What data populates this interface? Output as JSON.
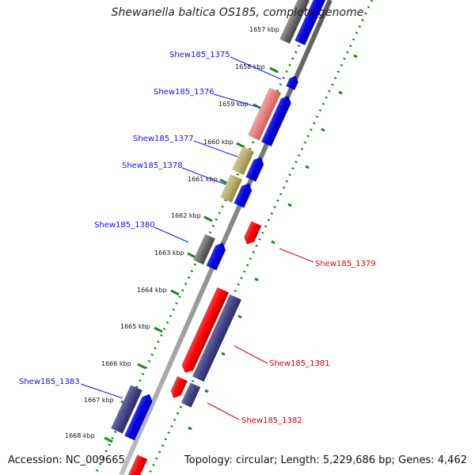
{
  "title": "Shewanella baltica OS185, complete genome",
  "accession": "Accession: NC_009665",
  "summary": "Topology: circular; Length: 5,229,686 bp; Genes: 4,462",
  "kbp_labels": [
    "1657 kbp",
    "1658 kbp",
    "1659 kbp",
    "1660 kbp",
    "1661 kbp",
    "1662 kbp",
    "1663 kbp",
    "1664 kbp",
    "1665 kbp",
    "1666 kbp",
    "1667 kbp",
    "1668 kbp"
  ],
  "genes_left": [
    {
      "name": "Shew185_1375",
      "color": "#1010ff"
    },
    {
      "name": "Shew185_1376",
      "color": "#1010ff"
    },
    {
      "name": "Shew185_1377",
      "color": "#1010ff"
    },
    {
      "name": "Shew185_1378",
      "color": "#1010ff"
    },
    {
      "name": "Shew185_1380",
      "color": "#1010ff"
    },
    {
      "name": "Shew185_1383",
      "color": "#1010ff"
    }
  ],
  "genes_right": [
    {
      "name": "Shew185_1379",
      "color": "#e00000"
    },
    {
      "name": "Shew185_1381",
      "color": "#e00000"
    },
    {
      "name": "Shew185_1382",
      "color": "#e00000"
    }
  ],
  "colors": {
    "forward_cds": "#1010ff",
    "reverse_cds": "#ff0000",
    "slate_feature": "#4a4a8c",
    "gray_feature": "#6e6e6e",
    "pink_feature": "#e88080",
    "olive_feature": "#b8b06a",
    "tick_green": "#1a8a1a",
    "backbone": "#8a8a8a"
  }
}
